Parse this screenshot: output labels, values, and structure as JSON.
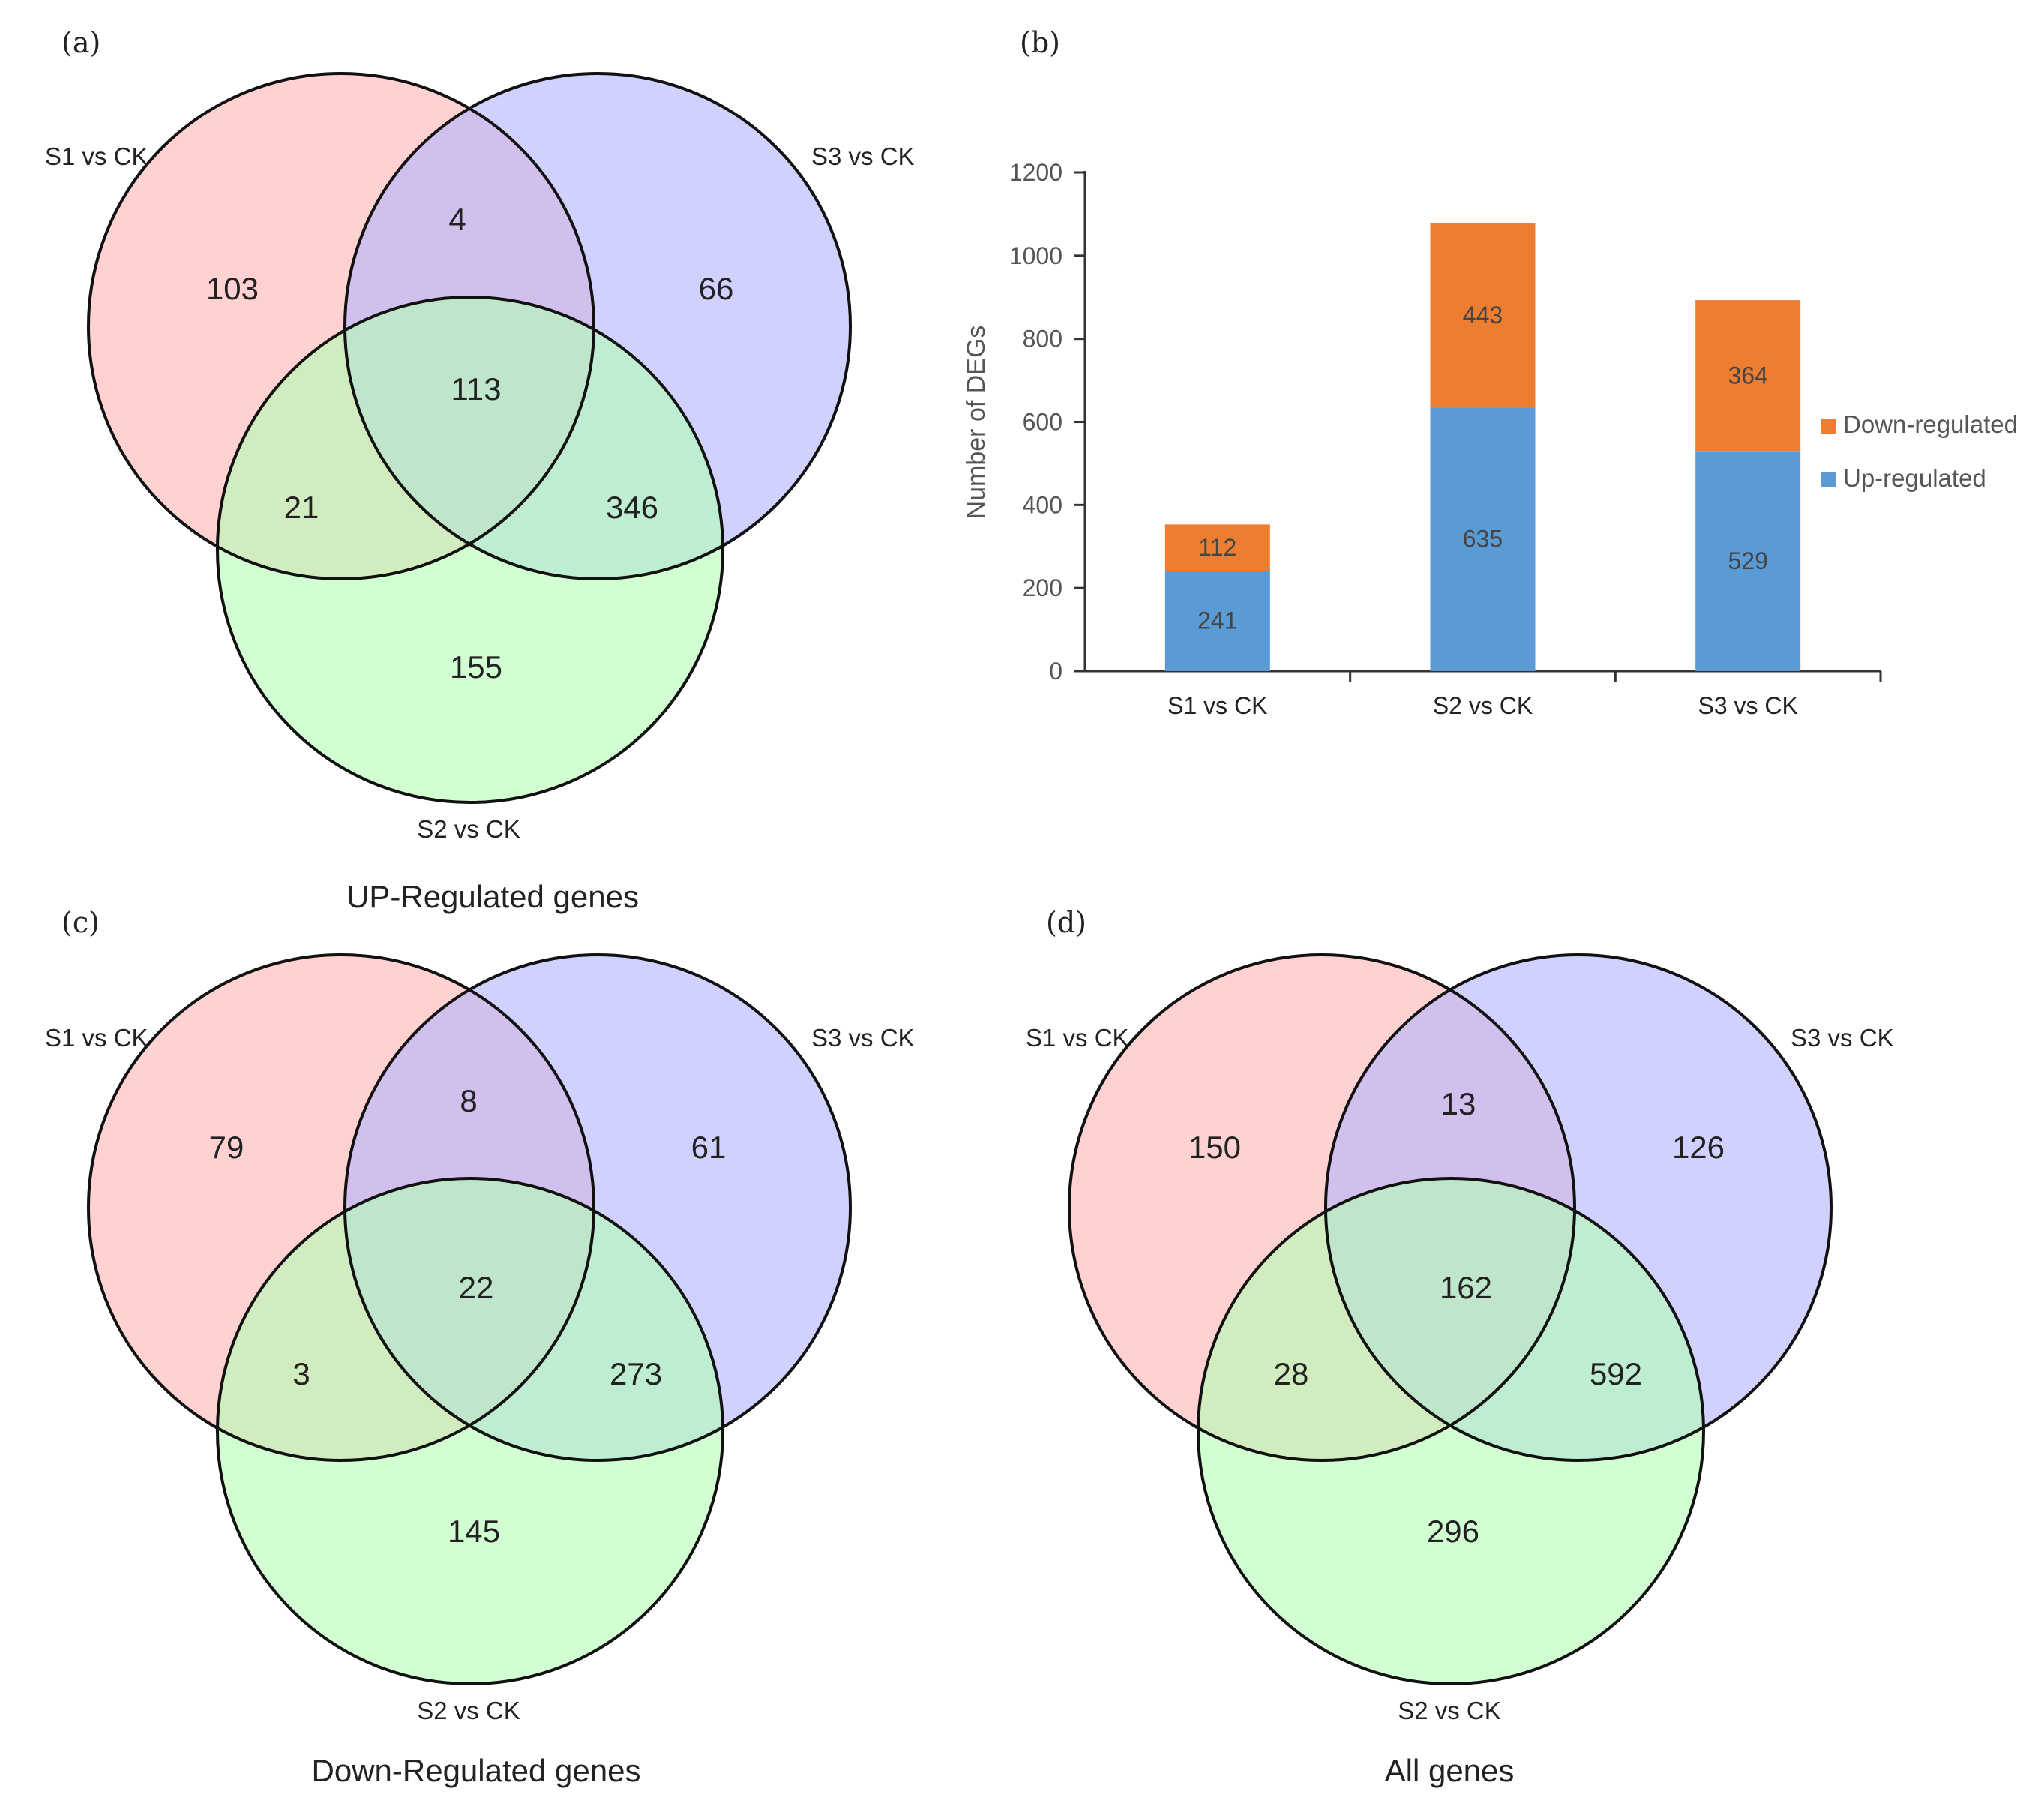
{
  "colors": {
    "set1": "#ffb3b3",
    "set2": "#b3ffb3",
    "set3": "#b3b3ff",
    "down": "#ed7d31",
    "up": "#5b9bd5",
    "outline": "#111111",
    "axis": "#333333"
  },
  "venn_panels": [
    {
      "letter": "(a)",
      "title": "UP-Regulated genes",
      "sets": {
        "s1": "S1 vs CK",
        "s2": "S2 vs CK",
        "s3": "S3 vs CK"
      },
      "regions": {
        "s1_only": "103",
        "s3_only": "66",
        "s1_s3": "4",
        "all": "113",
        "s1_s2": "21",
        "s2_s3": "346",
        "s2_only": "155"
      }
    },
    {
      "letter": "(c)",
      "title": "Down-Regulated genes",
      "sets": {
        "s1": "S1 vs CK",
        "s2": "S2 vs CK",
        "s3": "S3 vs CK"
      },
      "regions": {
        "s1_only": "79",
        "s3_only": "61",
        "s1_s3": "8",
        "all": "22",
        "s1_s2": "3",
        "s2_s3": "273",
        "s2_only": "145"
      }
    },
    {
      "letter": "(d)",
      "title": "All genes",
      "sets": {
        "s1": "S1 vs CK",
        "s2": "S2 vs CK",
        "s3": "S3 vs CK"
      },
      "regions": {
        "s1_only": "150",
        "s3_only": "126",
        "s1_s3": "13",
        "all": "162",
        "s1_s2": "28",
        "s2_s3": "592",
        "s2_only": "296"
      }
    }
  ],
  "chart_data": {
    "letter": "(b)",
    "type": "bar",
    "stacked": true,
    "categories": [
      "S1 vs CK",
      "S2 vs CK",
      "S3 vs CK"
    ],
    "series": [
      {
        "name": "Up-regulated",
        "values": [
          241,
          635,
          529
        ]
      },
      {
        "name": "Down-regulated",
        "values": [
          112,
          443,
          364
        ]
      }
    ],
    "legend": [
      "Down-regulated",
      "Up-regulated"
    ],
    "legend_position": "right",
    "title": "",
    "xlabel": "",
    "ylabel": "Number of DEGs",
    "ylim": [
      0,
      1200
    ],
    "yticks": [
      0,
      200,
      400,
      600,
      800,
      1000,
      1200
    ],
    "grid": false
  }
}
